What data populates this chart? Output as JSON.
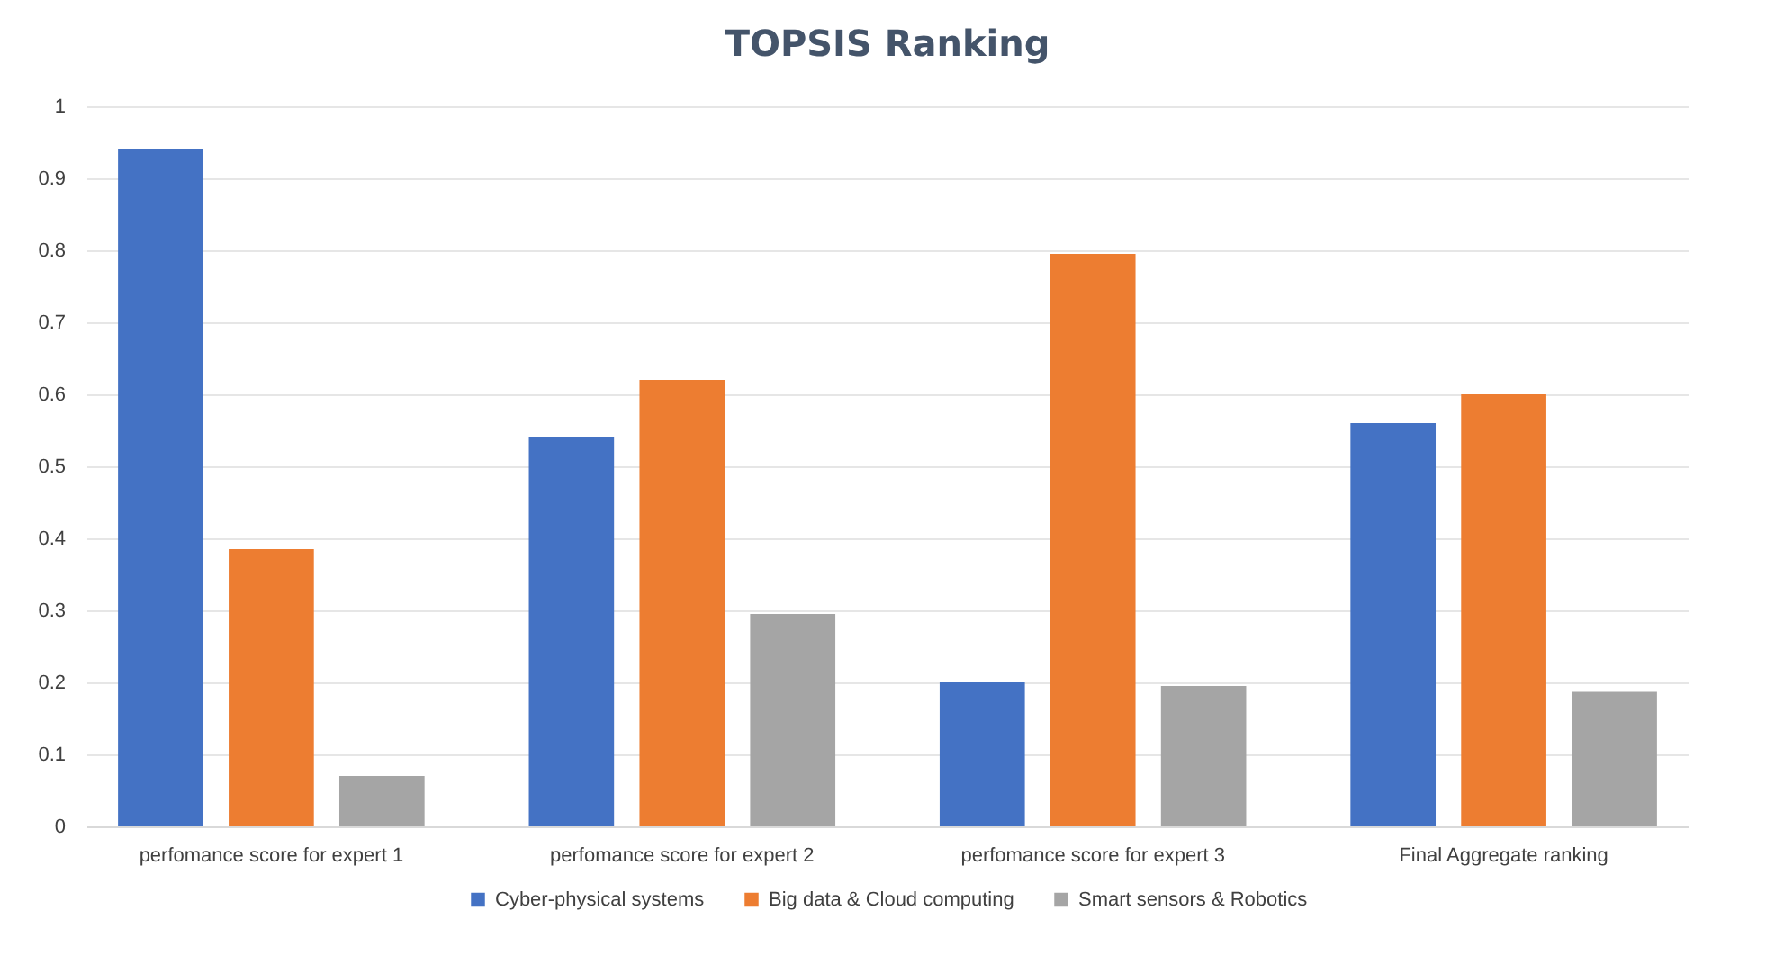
{
  "chart_data": {
    "type": "bar",
    "title": "TOPSIS Ranking",
    "categories": [
      "perfomance score for expert 1",
      "perfomance score for expert 2",
      "perfomance score for expert 3",
      "Final Aggregate ranking"
    ],
    "series": [
      {
        "name": "Cyber-physical systems",
        "color": "#4472c4",
        "values": [
          0.94,
          0.54,
          0.2,
          0.56
        ]
      },
      {
        "name": "Big data & Cloud computing",
        "color": "#ed7d31",
        "values": [
          0.385,
          0.62,
          0.795,
          0.6
        ]
      },
      {
        "name": "Smart sensors & Robotics",
        "color": "#a5a5a5",
        "values": [
          0.07,
          0.295,
          0.195,
          0.187
        ]
      }
    ],
    "ylim": [
      0,
      1
    ],
    "yticks": [
      0,
      0.1,
      0.2,
      0.3,
      0.4,
      0.5,
      0.6,
      0.7,
      0.8,
      0.9,
      1
    ],
    "grid": "y",
    "legend": "bottom"
  }
}
